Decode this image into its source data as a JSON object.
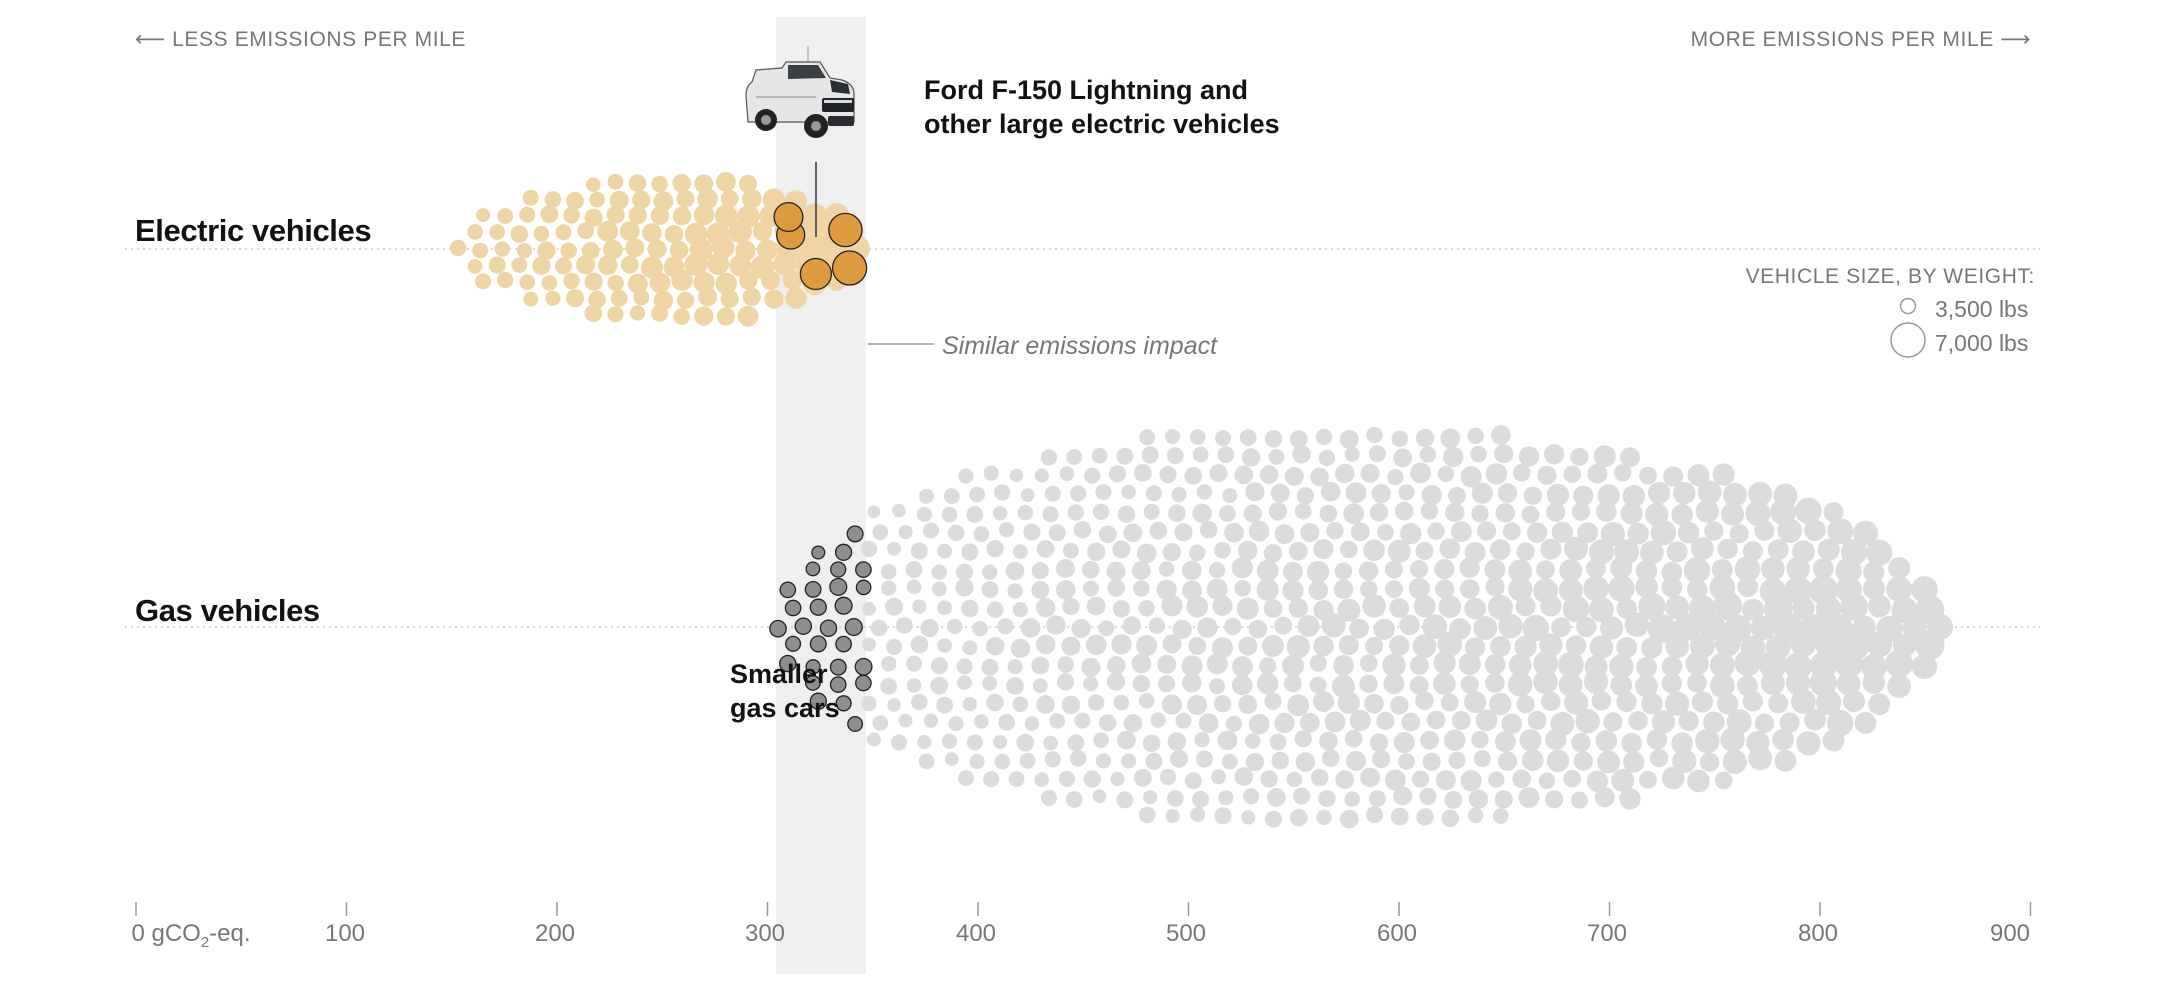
{
  "header": {
    "less_label": "LESS EMISSIONS PER MILE",
    "more_label": "MORE EMISSIONS PER MILE"
  },
  "annotations": {
    "ford_line1": "Ford F-150 Lightning and",
    "ford_line2": "other large electric vehicles",
    "similar": "Similar emissions impact",
    "smaller_line1": "Smaller",
    "smaller_line2": "gas cars"
  },
  "legend": {
    "title": "VEHICLE SIZE, BY WEIGHT:",
    "small_label": "3,500 lbs",
    "large_label": "7,000 lbs"
  },
  "colors": {
    "ev_light": "#efd5a6",
    "ev_highlight": "#dd9a3e",
    "gas_light": "#dcdcdc",
    "gas_highlight": "#8b8f8e",
    "band": "#efefef",
    "axis": "#999999"
  },
  "icons": {
    "truck": "pickup-truck-icon"
  },
  "chart_data": {
    "type": "beeswarm",
    "xlim": [
      0,
      900
    ],
    "x_unit_label": "0 gCO2-eq.",
    "ticks": [
      0,
      100,
      200,
      300,
      400,
      500,
      600,
      700,
      800,
      900
    ],
    "tick_labels": [
      "",
      "100",
      "200",
      "300",
      "400",
      "500",
      "600",
      "700",
      "800",
      "900"
    ],
    "highlight_band": [
      305,
      348
    ],
    "size_encoding": "vehicle weight (lbs)",
    "series": [
      {
        "name": "Electric vehicles",
        "range": [
          153,
          348
        ],
        "peak": 260,
        "highlight_range": [
          310,
          348
        ],
        "highlight_points": [
          [
            311,
            3800
          ],
          [
            323,
            4200
          ],
          [
            337,
            4500
          ],
          [
            310,
            3900
          ],
          [
            339,
            4600
          ]
        ]
      },
      {
        "name": "Gas vehicles",
        "range": [
          305,
          860
        ],
        "peak": 560,
        "highlight_range": [
          305,
          348
        ]
      }
    ]
  }
}
